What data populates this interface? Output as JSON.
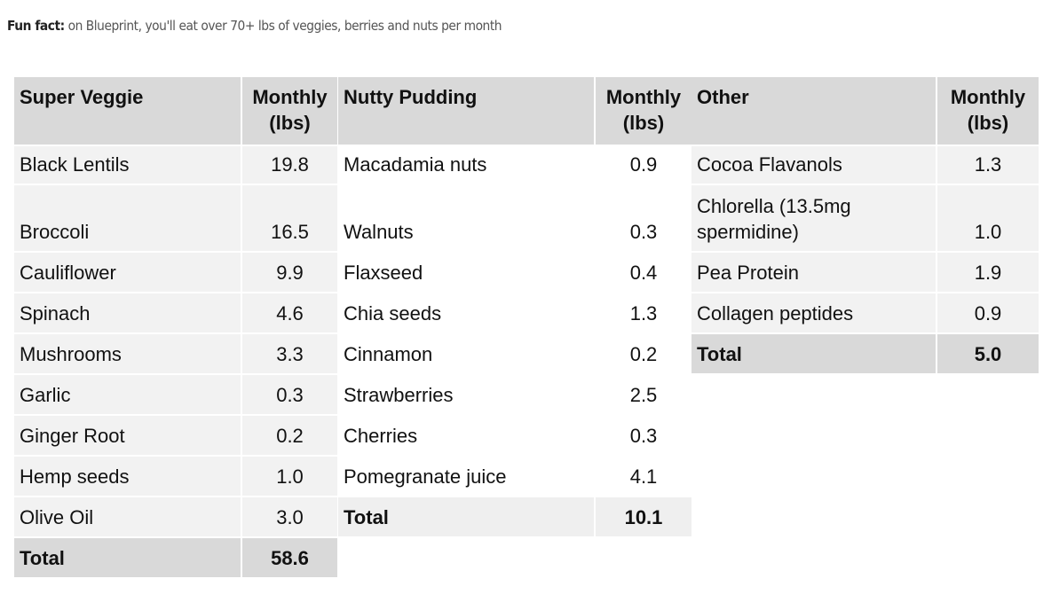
{
  "fun_fact": {
    "label": "Fun fact:",
    "text": " on Blueprint, you'll eat over 70+ lbs of veggies, berries and nuts per month"
  },
  "tables": [
    {
      "header": "Super Veggie",
      "unit_header": "Monthly (lbs)",
      "rows": [
        {
          "name": "Black Lentils",
          "value": "19.8"
        },
        {
          "name": "Broccoli",
          "value": "16.5"
        },
        {
          "name": "Cauliflower",
          "value": "9.9"
        },
        {
          "name": "Spinach",
          "value": "4.6"
        },
        {
          "name": "Mushrooms",
          "value": "3.3"
        },
        {
          "name": "Garlic",
          "value": "0.3"
        },
        {
          "name": "Ginger Root",
          "value": "0.2"
        },
        {
          "name": "Hemp seeds",
          "value": "1.0"
        },
        {
          "name": "Olive Oil",
          "value": "3.0"
        }
      ],
      "total_label": "Total",
      "total_value": "58.6"
    },
    {
      "header": "Nutty Pudding",
      "unit_header": "Monthly (lbs)",
      "rows": [
        {
          "name": "Macadamia nuts",
          "value": "0.9"
        },
        {
          "name": "Walnuts",
          "value": "0.3"
        },
        {
          "name": "Flaxseed",
          "value": "0.4"
        },
        {
          "name": "Chia seeds",
          "value": "1.3"
        },
        {
          "name": "Cinnamon",
          "value": "0.2"
        },
        {
          "name": "Strawberries",
          "value": "2.5"
        },
        {
          "name": "Cherries",
          "value": "0.3"
        },
        {
          "name": "Pomegranate juice",
          "value": "4.1"
        }
      ],
      "total_label": "Total",
      "total_value": "10.1"
    },
    {
      "header": "Other",
      "unit_header": "Monthly (lbs)",
      "rows": [
        {
          "name": "Cocoa Flavanols",
          "value": "1.3"
        },
        {
          "name": "Chlorella (13.5mg spermidine)",
          "value": "1.0"
        },
        {
          "name": "Pea Protein",
          "value": "1.9"
        },
        {
          "name": "Collagen peptides",
          "value": "0.9"
        }
      ],
      "total_label": "Total",
      "total_value": "5.0"
    }
  ]
}
